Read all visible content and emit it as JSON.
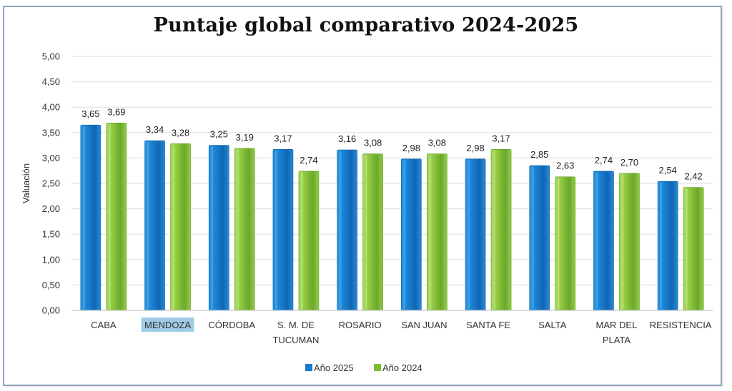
{
  "chart_data": {
    "type": "bar",
    "title": "Puntaje global comparativo 2024-2025",
    "xlabel": "",
    "ylabel": "Valuación",
    "ylim": [
      0,
      5
    ],
    "ytick_step": 0.5,
    "ytick_labels": [
      "0,00",
      "0,50",
      "1,00",
      "1,50",
      "2,00",
      "2,50",
      "3,00",
      "3,50",
      "4,00",
      "4,50",
      "5,00"
    ],
    "grid": true,
    "legend_position": "bottom",
    "categories": [
      [
        "CABA"
      ],
      [
        "MENDOZA"
      ],
      [
        "CÓRDOBA"
      ],
      [
        "S. M.  DE",
        "TUCUMAN"
      ],
      [
        "ROSARIO"
      ],
      [
        "SAN JUAN"
      ],
      [
        "SANTA FE"
      ],
      [
        "SALTA"
      ],
      [
        "MAR DEL",
        "PLATA"
      ],
      [
        "RESISTENCIA"
      ]
    ],
    "highlighted_category": "MENDOZA",
    "series": [
      {
        "name": "Año 2025",
        "color": "#1f78c8",
        "values": [
          3.65,
          3.34,
          3.25,
          3.17,
          3.16,
          2.98,
          2.98,
          2.85,
          2.74,
          2.54
        ],
        "labels": [
          "3,65",
          "3,34",
          "3,25",
          "3,17",
          "3,16",
          "2,98",
          "2,98",
          "2,85",
          "2,74",
          "2,54"
        ]
      },
      {
        "name": "Año 2024",
        "color": "#7dbd2f",
        "values": [
          3.69,
          3.28,
          3.19,
          2.74,
          3.08,
          3.08,
          3.17,
          2.63,
          2.7,
          2.42
        ],
        "labels": [
          "3,69",
          "3,28",
          "3,19",
          "2,74",
          "3,08",
          "3,08",
          "3,17",
          "2,63",
          "2,70",
          "2,42"
        ]
      }
    ]
  }
}
